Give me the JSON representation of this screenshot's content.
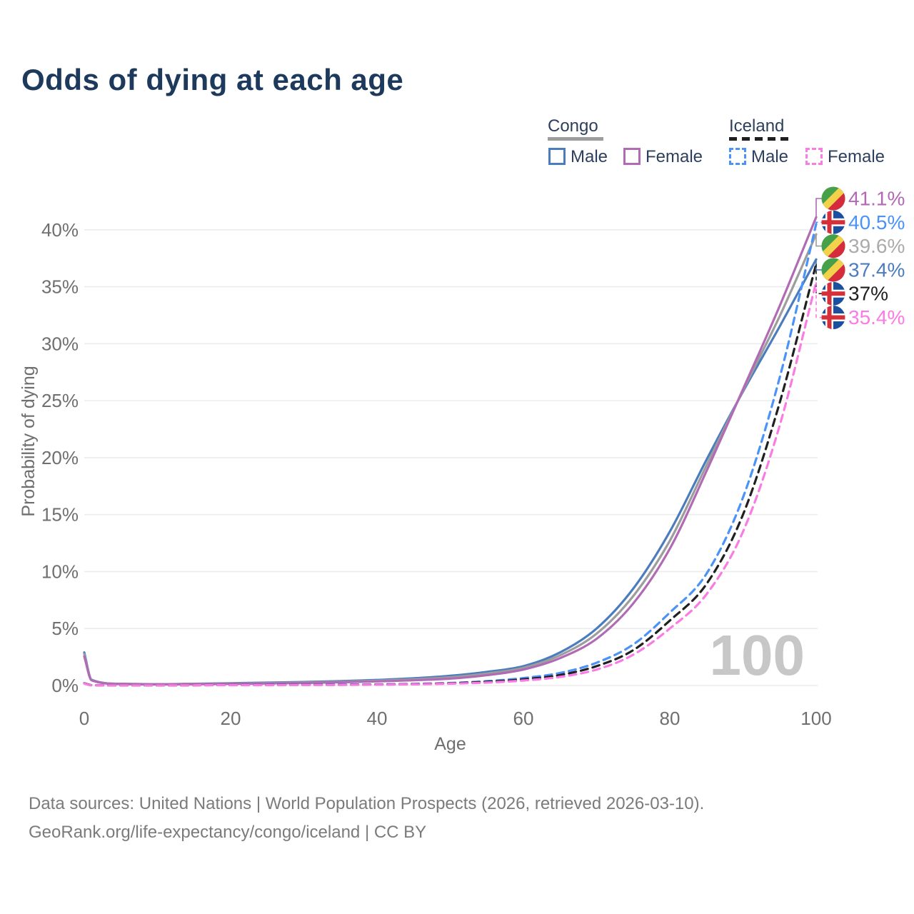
{
  "title": "Odds of dying at each age",
  "legend": {
    "groups": [
      {
        "country": "Congo",
        "underline_style": "solid",
        "underline_color": "#9d9d9d",
        "items": [
          {
            "label": "Male",
            "color": "#4b7dbe",
            "dash": "solid"
          },
          {
            "label": "Female",
            "color": "#b16ab4",
            "dash": "solid"
          }
        ]
      },
      {
        "country": "Iceland",
        "underline_style": "dashed",
        "underline_color": "#202020",
        "items": [
          {
            "label": "Male",
            "color": "#4b93f7",
            "dash": "dashed"
          },
          {
            "label": "Female",
            "color": "#fb7be4",
            "dash": "dashed"
          }
        ]
      }
    ]
  },
  "watermark": "100",
  "footer": {
    "line1": "Data sources: United Nations | World Population Prospects (2026, retrieved 2026-03-10).",
    "line2": "GeoRank.org/life-expectancy/congo/iceland | CC BY"
  },
  "chart_data": {
    "type": "line",
    "title": "Odds of dying at each age",
    "xlabel": "Age",
    "ylabel": "Probability of dying",
    "xlim": [
      0,
      100
    ],
    "ylim": [
      0,
      43
    ],
    "grid": "horizontal",
    "x_ticks": [
      0,
      20,
      40,
      60,
      80,
      100
    ],
    "y_ticks": [
      0,
      5,
      10,
      15,
      20,
      25,
      30,
      35,
      40
    ],
    "y_tick_suffix": "%",
    "hover_age_indicator": "100",
    "x": [
      0,
      1,
      5,
      10,
      15,
      20,
      25,
      30,
      35,
      40,
      45,
      50,
      55,
      60,
      65,
      70,
      75,
      80,
      85,
      90,
      95,
      100
    ],
    "series": [
      {
        "name": "Congo Male",
        "country": "Congo",
        "sex": "male",
        "flag": "congo",
        "color": "#4b7dbe",
        "dash": "solid",
        "end_label": "37.4%",
        "end_label_color": "#4b7dbe",
        "label_row": 3,
        "values": [
          2.9,
          0.5,
          0.15,
          0.12,
          0.15,
          0.2,
          0.25,
          0.31,
          0.39,
          0.49,
          0.63,
          0.85,
          1.2,
          1.7,
          2.9,
          5.0,
          8.5,
          13.5,
          19.8,
          25.8,
          31.5,
          37.4
        ]
      },
      {
        "name": "Congo Both sexes",
        "country": "Congo",
        "sex": "both",
        "flag": "congo",
        "color": "#9d9d9d",
        "dash": "solid",
        "end_label": "39.6%",
        "end_label_color": "#ababab",
        "label_row": 2,
        "values": [
          2.75,
          0.48,
          0.14,
          0.11,
          0.13,
          0.17,
          0.21,
          0.26,
          0.33,
          0.42,
          0.54,
          0.72,
          1.05,
          1.55,
          2.65,
          4.55,
          7.85,
          12.7,
          19.3,
          25.9,
          32.4,
          39.6
        ]
      },
      {
        "name": "Congo Female",
        "country": "Congo",
        "sex": "female",
        "flag": "congo",
        "color": "#b16ab4",
        "dash": "solid",
        "end_label": "41.1%",
        "end_label_color": "#b16ab4",
        "label_row": 0,
        "values": [
          2.55,
          0.45,
          0.13,
          0.1,
          0.12,
          0.15,
          0.18,
          0.22,
          0.28,
          0.36,
          0.46,
          0.6,
          0.9,
          1.4,
          2.4,
          4.1,
          7.2,
          12.0,
          18.8,
          26.0,
          33.3,
          41.1
        ]
      },
      {
        "name": "Iceland Male",
        "country": "Iceland",
        "sex": "male",
        "flag": "iceland",
        "color": "#4b93f7",
        "dash": "dashed",
        "end_label": "40.5%",
        "end_label_color": "#4b93f7",
        "label_row": 1,
        "values": [
          0.2,
          0.03,
          0.01,
          0.01,
          0.03,
          0.05,
          0.06,
          0.07,
          0.08,
          0.1,
          0.14,
          0.22,
          0.38,
          0.65,
          1.1,
          2.0,
          3.6,
          6.4,
          9.8,
          16.5,
          27.0,
          40.5
        ]
      },
      {
        "name": "Iceland Both sexes",
        "country": "Iceland",
        "sex": "both",
        "flag": "iceland",
        "color": "#202020",
        "dash": "dashed",
        "end_label": "37%",
        "end_label_color": "#1f1f1f",
        "label_row": 4,
        "values": [
          0.19,
          0.025,
          0.01,
          0.01,
          0.025,
          0.04,
          0.045,
          0.055,
          0.065,
          0.085,
          0.12,
          0.19,
          0.32,
          0.54,
          0.92,
          1.7,
          3.1,
          5.7,
          8.9,
          15.0,
          24.8,
          37.0
        ]
      },
      {
        "name": "Iceland Female",
        "country": "Iceland",
        "sex": "female",
        "flag": "iceland",
        "color": "#fb7be4",
        "dash": "dashed",
        "end_label": "35.4%",
        "end_label_color": "#fb7be4",
        "label_row": 5,
        "values": [
          0.17,
          0.02,
          0.01,
          0.01,
          0.02,
          0.03,
          0.03,
          0.04,
          0.05,
          0.07,
          0.1,
          0.16,
          0.26,
          0.44,
          0.75,
          1.4,
          2.7,
          5.0,
          8.0,
          13.5,
          22.8,
          35.4
        ]
      }
    ],
    "colors": {
      "grid": "#ececec",
      "tick_text": "#6f6f6f",
      "watermark": "#c7c7c7",
      "congo_flag_green": "#45a049",
      "congo_flag_yellow": "#f2d24b",
      "congo_flag_red": "#d62b3d",
      "iceland_flag_blue": "#1b4fa0",
      "iceland_flag_red": "#d3303a",
      "iceland_flag_white": "#ffffff"
    }
  }
}
